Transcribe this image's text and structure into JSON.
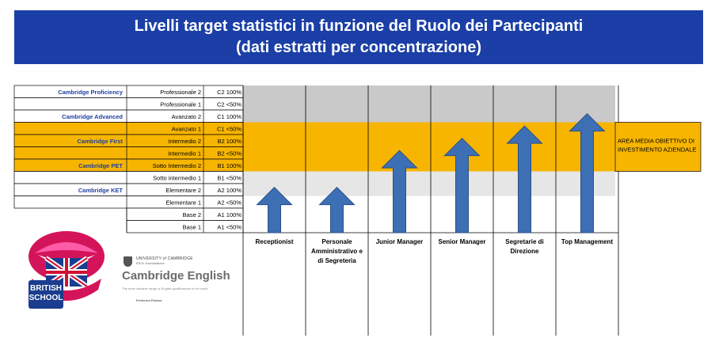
{
  "title": {
    "line1": "Livelli target statistici in funzione del Ruolo dei Partecipanti",
    "line2": "(dati estratti per concentrazione)"
  },
  "logo": {
    "school_text_1": "BRITISH",
    "school_text_2": "SCHOOL"
  },
  "cambridge_partner": {
    "university": "UNIVERSITY of CAMBRIDGE",
    "exams": "ESOL Examinations",
    "brand": "Cambridge English",
    "tagline": "The most valuable range of English qualifications in the world",
    "partner": "Preferred Partner"
  },
  "chart_data": {
    "type": "table",
    "levels": [
      {
        "exam": "Cambridge Proficiency",
        "label": "Professionale 2",
        "code": "C2 100%",
        "band": "grey"
      },
      {
        "exam": "",
        "label": "Professionale 1",
        "code": "C2 <50%",
        "band": "grey"
      },
      {
        "exam": "Cambridge Advanced",
        "label": "Avanzato 2",
        "code": "C1 100%",
        "band": "grey"
      },
      {
        "exam": "",
        "label": "Avanzato 1",
        "code": "C1 <50%",
        "band": "orange"
      },
      {
        "exam": "Cambridge First",
        "label": "Intermedio 2",
        "code": "B2 100%",
        "band": "orange"
      },
      {
        "exam": "",
        "label": "Intermedio 1",
        "code": "B2 <50%",
        "band": "orange"
      },
      {
        "exam": "Cambridge PET",
        "label": "Sotto Intermedio 2",
        "code": "B1 100%",
        "band": "orange"
      },
      {
        "exam": "",
        "label": "Sotto intermedio 1",
        "code": "B1 <50%",
        "band": "light"
      },
      {
        "exam": "Cambridge KET",
        "label": "Elementare 2",
        "code": "A2 100%",
        "band": "light"
      },
      {
        "exam": "",
        "label": "Elementare 1",
        "code": "A2 <50%",
        "band": "white"
      },
      {
        "exam": "",
        "label": "Base 2",
        "code": "A1 100%",
        "band": "white"
      },
      {
        "exam": "",
        "label": "Base 1",
        "code": "A1 <50%",
        "band": "white"
      }
    ],
    "roles": [
      {
        "name": "Receptionist",
        "target_level": "A2 100%"
      },
      {
        "name": "Personale Amministrativo e di Segreteria",
        "target_level": "A2 100%"
      },
      {
        "name": "Junior Manager",
        "target_level": "B2 <50%"
      },
      {
        "name": "Senior Manager",
        "target_level": "B2 100%"
      },
      {
        "name": "Segretarie di Direzione",
        "target_level": "C1 <50%"
      },
      {
        "name": "Top Management",
        "target_level": "C1 100%"
      }
    ],
    "band_note": "AREA MEDIA OBIETTIVO DI INVESTIMENTO AZIENDALE",
    "colors": {
      "orange": "#f7b500",
      "grey": "#c9c9c9",
      "light": "#e6e6e6",
      "arrow_fill": "#3d6fb4",
      "arrow_stroke": "#2c4f86",
      "exam_text": "#1f3fa0",
      "banner": "#1b3fa6"
    }
  }
}
